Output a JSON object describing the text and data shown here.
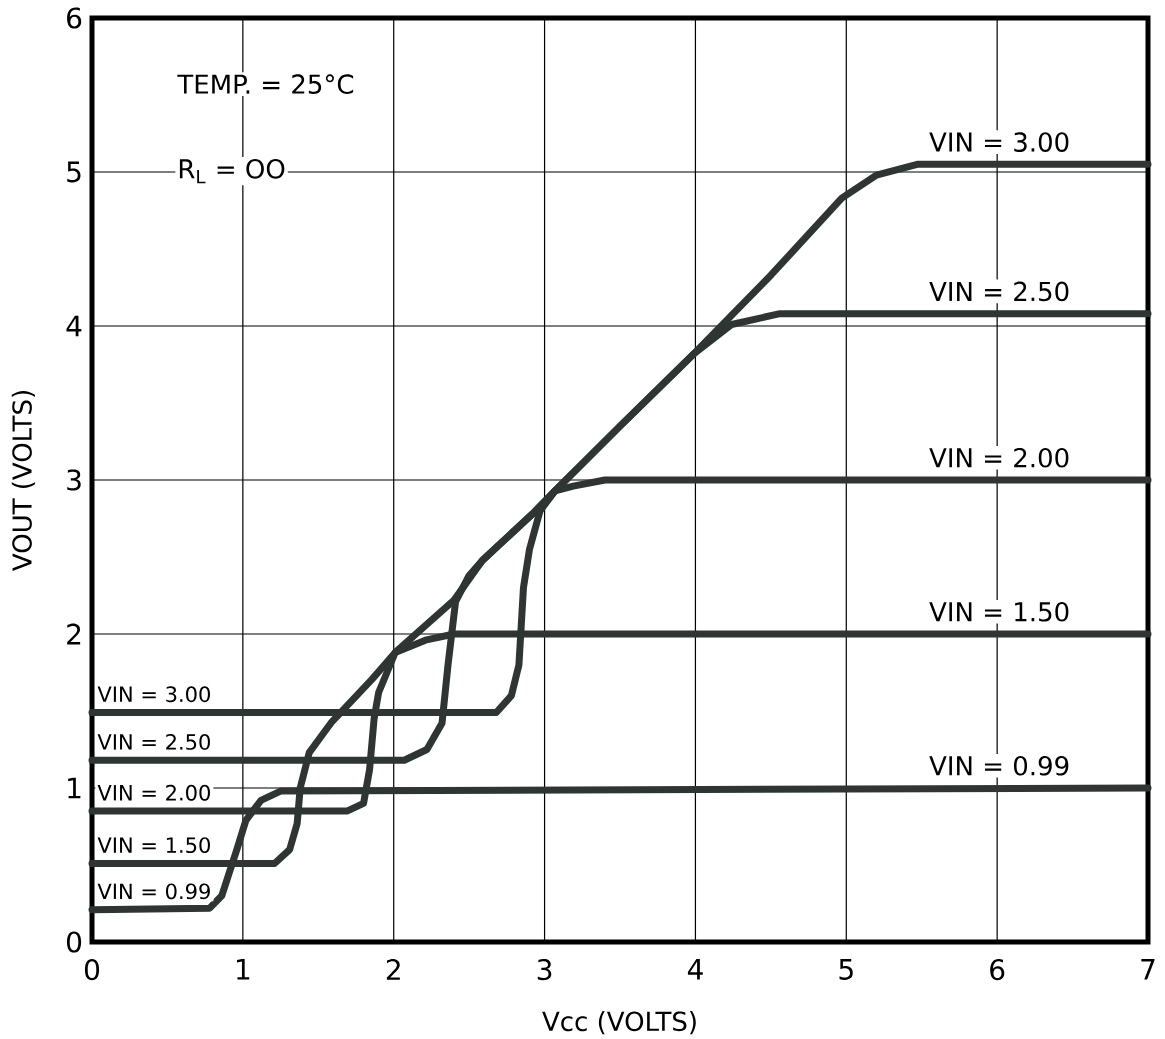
{
  "chart_data": {
    "type": "line",
    "xlabel": "Vcc (VOLTS)",
    "ylabel": "VOUT (VOLTS)",
    "xlim": [
      0,
      7
    ],
    "ylim": [
      0,
      6
    ],
    "xticks": [
      0,
      1,
      2,
      3,
      4,
      5,
      6,
      7
    ],
    "yticks": [
      0,
      1,
      2,
      3,
      4,
      5,
      6
    ],
    "grid": true,
    "marker": "none",
    "line_style": "solid",
    "annotations": [
      "TEMP. = 25°C",
      "R$_{L}$ = OO"
    ],
    "series": [
      {
        "name": "VIN = 0.99",
        "color": "#2e3532",
        "x": [
          0,
          0.78,
          0.86,
          0.91,
          0.96,
          1.02,
          1.12,
          1.25,
          7
        ],
        "values": [
          0.21,
          0.22,
          0.3,
          0.45,
          0.6,
          0.79,
          0.92,
          0.98,
          1.0
        ]
      },
      {
        "name": "VIN = 1.50",
        "color": "#2e3532",
        "x": [
          0,
          1.21,
          1.31,
          1.36,
          1.38,
          1.44,
          1.59,
          1.86,
          2.01,
          2.21,
          2.4,
          7
        ],
        "values": [
          0.51,
          0.51,
          0.6,
          0.77,
          1.0,
          1.23,
          1.43,
          1.71,
          1.88,
          1.96,
          2.0,
          2.0
        ]
      },
      {
        "name": "VIN = 2.00",
        "color": "#2e3532",
        "x": [
          0,
          1.69,
          1.8,
          1.84,
          1.87,
          1.9,
          2.01,
          2.4,
          2.59,
          2.92,
          3.07,
          3.19,
          3.4,
          7
        ],
        "values": [
          0.85,
          0.85,
          0.9,
          1.12,
          1.45,
          1.62,
          1.88,
          2.22,
          2.48,
          2.78,
          2.93,
          2.96,
          3.0,
          3.0
        ]
      },
      {
        "name": "VIN = 2.50",
        "color": "#2e3532",
        "x": [
          0,
          2.07,
          2.22,
          2.32,
          2.36,
          2.41,
          2.5,
          2.59,
          2.92,
          3.07,
          3.5,
          3.99,
          4.24,
          4.56,
          7
        ],
        "values": [
          1.18,
          1.18,
          1.25,
          1.42,
          1.8,
          2.21,
          2.38,
          2.48,
          2.78,
          2.93,
          3.35,
          3.82,
          4.01,
          4.08,
          4.08
        ]
      },
      {
        "name": "VIN = 3.00",
        "color": "#2e3532",
        "x": [
          0,
          2.68,
          2.78,
          2.83,
          2.86,
          2.9,
          2.97,
          3.07,
          3.5,
          3.99,
          4.5,
          4.97,
          5.2,
          5.47,
          7
        ],
        "values": [
          1.49,
          1.49,
          1.6,
          1.8,
          2.3,
          2.55,
          2.8,
          2.93,
          3.35,
          3.82,
          4.33,
          4.83,
          4.98,
          5.05,
          5.05
        ]
      }
    ]
  }
}
